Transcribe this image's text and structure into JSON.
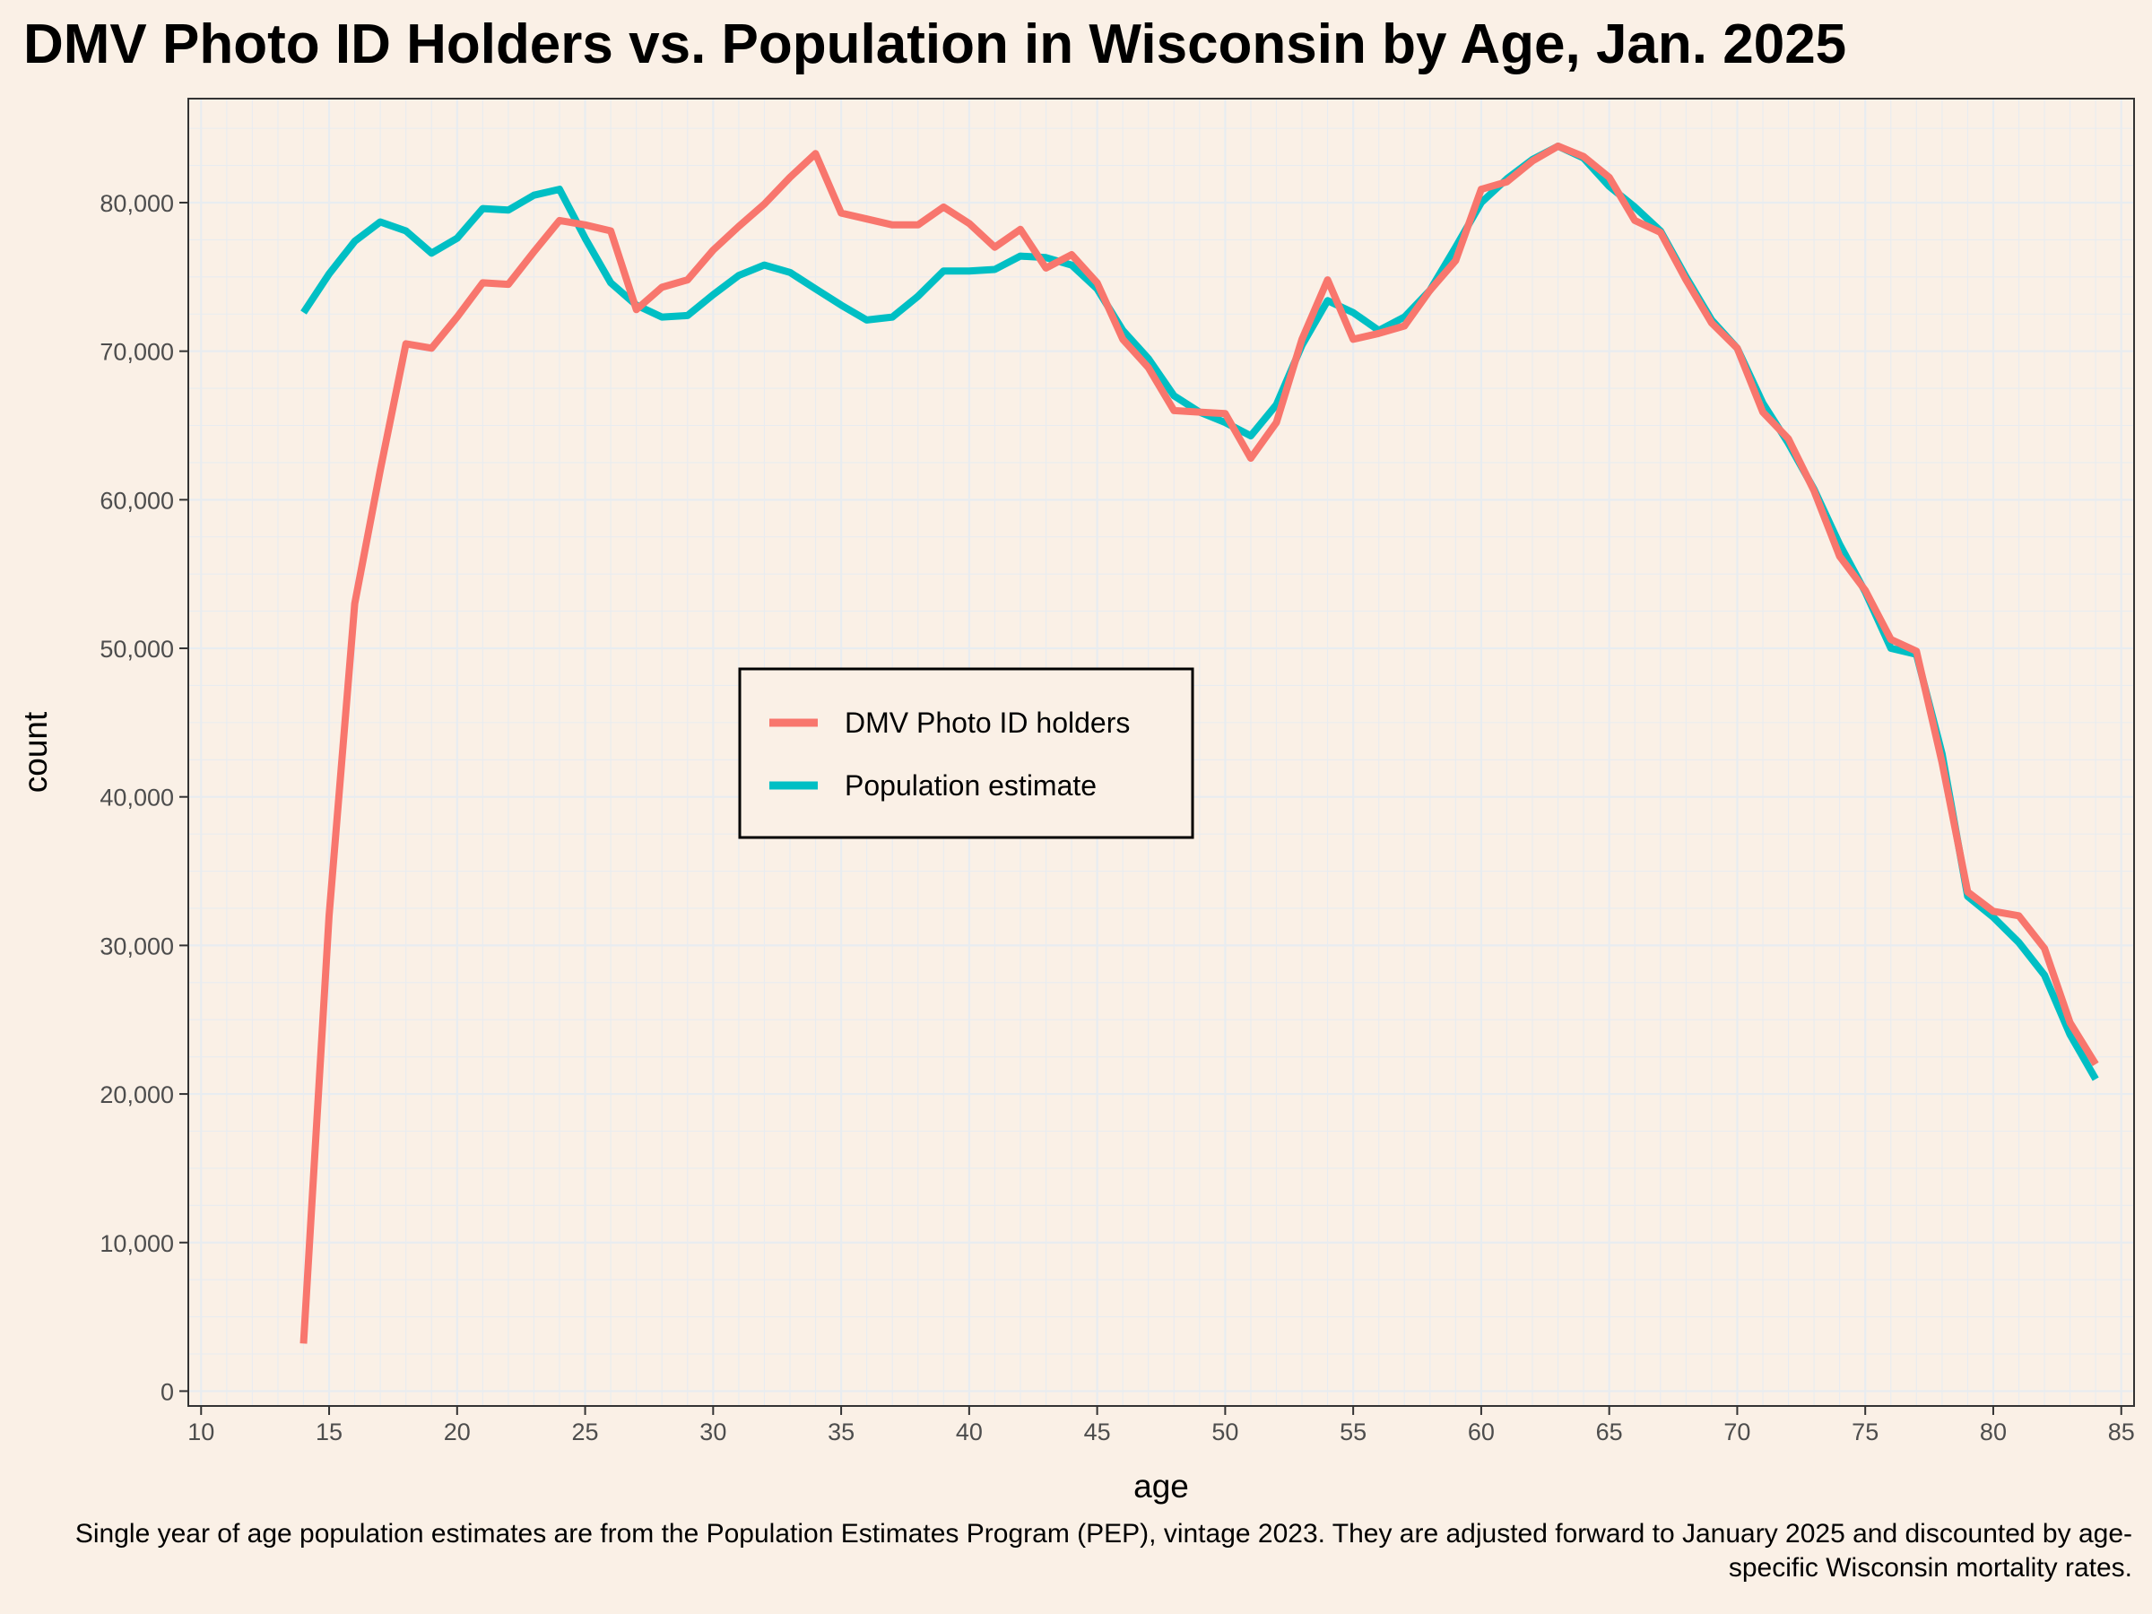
{
  "colors": {
    "background": "#FAF0E6",
    "grid": "#E8ECF0",
    "dmv": "#F8766D",
    "population": "#00BFC4"
  },
  "chart_data": {
    "type": "line",
    "title": "DMV Photo ID Holders vs. Population in Wisconsin by Age, Jan. 2025",
    "xlabel": "age",
    "ylabel": "count",
    "xlim": [
      9.5,
      85.5
    ],
    "ylim": [
      -1000,
      87000
    ],
    "grid": true,
    "legend_position": "center",
    "x_ticks": [
      10,
      15,
      20,
      25,
      30,
      35,
      40,
      45,
      50,
      55,
      60,
      65,
      70,
      75,
      80,
      85
    ],
    "y_ticks": [
      0,
      10000,
      20000,
      30000,
      40000,
      50000,
      60000,
      70000,
      80000
    ],
    "y_tick_labels": [
      "0",
      "10,000",
      "20,000",
      "30,000",
      "40,000",
      "50,000",
      "60,000",
      "70,000",
      "80,000"
    ],
    "x": [
      14,
      15,
      16,
      17,
      18,
      19,
      20,
      21,
      22,
      23,
      24,
      25,
      26,
      27,
      28,
      29,
      30,
      31,
      32,
      33,
      34,
      35,
      36,
      37,
      38,
      39,
      40,
      41,
      42,
      43,
      44,
      45,
      46,
      47,
      48,
      49,
      50,
      51,
      52,
      53,
      54,
      55,
      56,
      57,
      58,
      59,
      60,
      61,
      62,
      63,
      64,
      65,
      66,
      67,
      68,
      69,
      70,
      71,
      72,
      73,
      74,
      75,
      76,
      77,
      78,
      79,
      80,
      81,
      82,
      83,
      84
    ],
    "series": [
      {
        "name": "DMV Photo ID holders",
        "color": "#F8766D",
        "values": [
          3200,
          32000,
          53000,
          62000,
          70500,
          70200,
          72300,
          74600,
          74500,
          76700,
          78800,
          78500,
          78100,
          72800,
          74300,
          74800,
          76800,
          78400,
          79900,
          81700,
          83300,
          79300,
          78900,
          78500,
          78500,
          79700,
          78600,
          77000,
          78200,
          75600,
          76500,
          74600,
          70800,
          68900,
          66000,
          65900,
          65800,
          62800,
          65200,
          70800,
          74800,
          70800,
          71200,
          71700,
          74100,
          76100,
          80900,
          81400,
          82800,
          83800,
          83100,
          81700,
          78800,
          78000,
          74800,
          71900,
          70200,
          65900,
          64100,
          60600,
          56200,
          53900,
          50600,
          49800,
          42300,
          33600,
          32300,
          32000,
          29800,
          24800,
          22000
        ]
      },
      {
        "name": "Population estimate",
        "color": "#00BFC4",
        "values": [
          72600,
          75200,
          77400,
          78700,
          78100,
          76600,
          77600,
          79600,
          79500,
          80500,
          80900,
          77600,
          74600,
          73100,
          72300,
          72400,
          73800,
          75100,
          75800,
          75300,
          74200,
          73100,
          72100,
          72300,
          73700,
          75400,
          75400,
          75500,
          76400,
          76300,
          75800,
          74200,
          71400,
          69500,
          67000,
          65900,
          65200,
          64300,
          66400,
          70400,
          73400,
          72600,
          71400,
          72300,
          74100,
          77000,
          80000,
          81600,
          82900,
          83800,
          83000,
          81100,
          79700,
          78100,
          75000,
          72100,
          70200,
          66500,
          63800,
          60700,
          57000,
          53800,
          50000,
          49600,
          42900,
          33300,
          31900,
          30200,
          28000,
          24000,
          21000
        ]
      }
    ]
  },
  "legend": {
    "items": [
      "DMV Photo ID holders",
      "Population estimate"
    ]
  },
  "caption": "Single year of age population estimates are from the Population Estimates Program (PEP), vintage 2023. They are adjusted forward to January 2025 and discounted by age-specific Wisconsin mortality rates."
}
